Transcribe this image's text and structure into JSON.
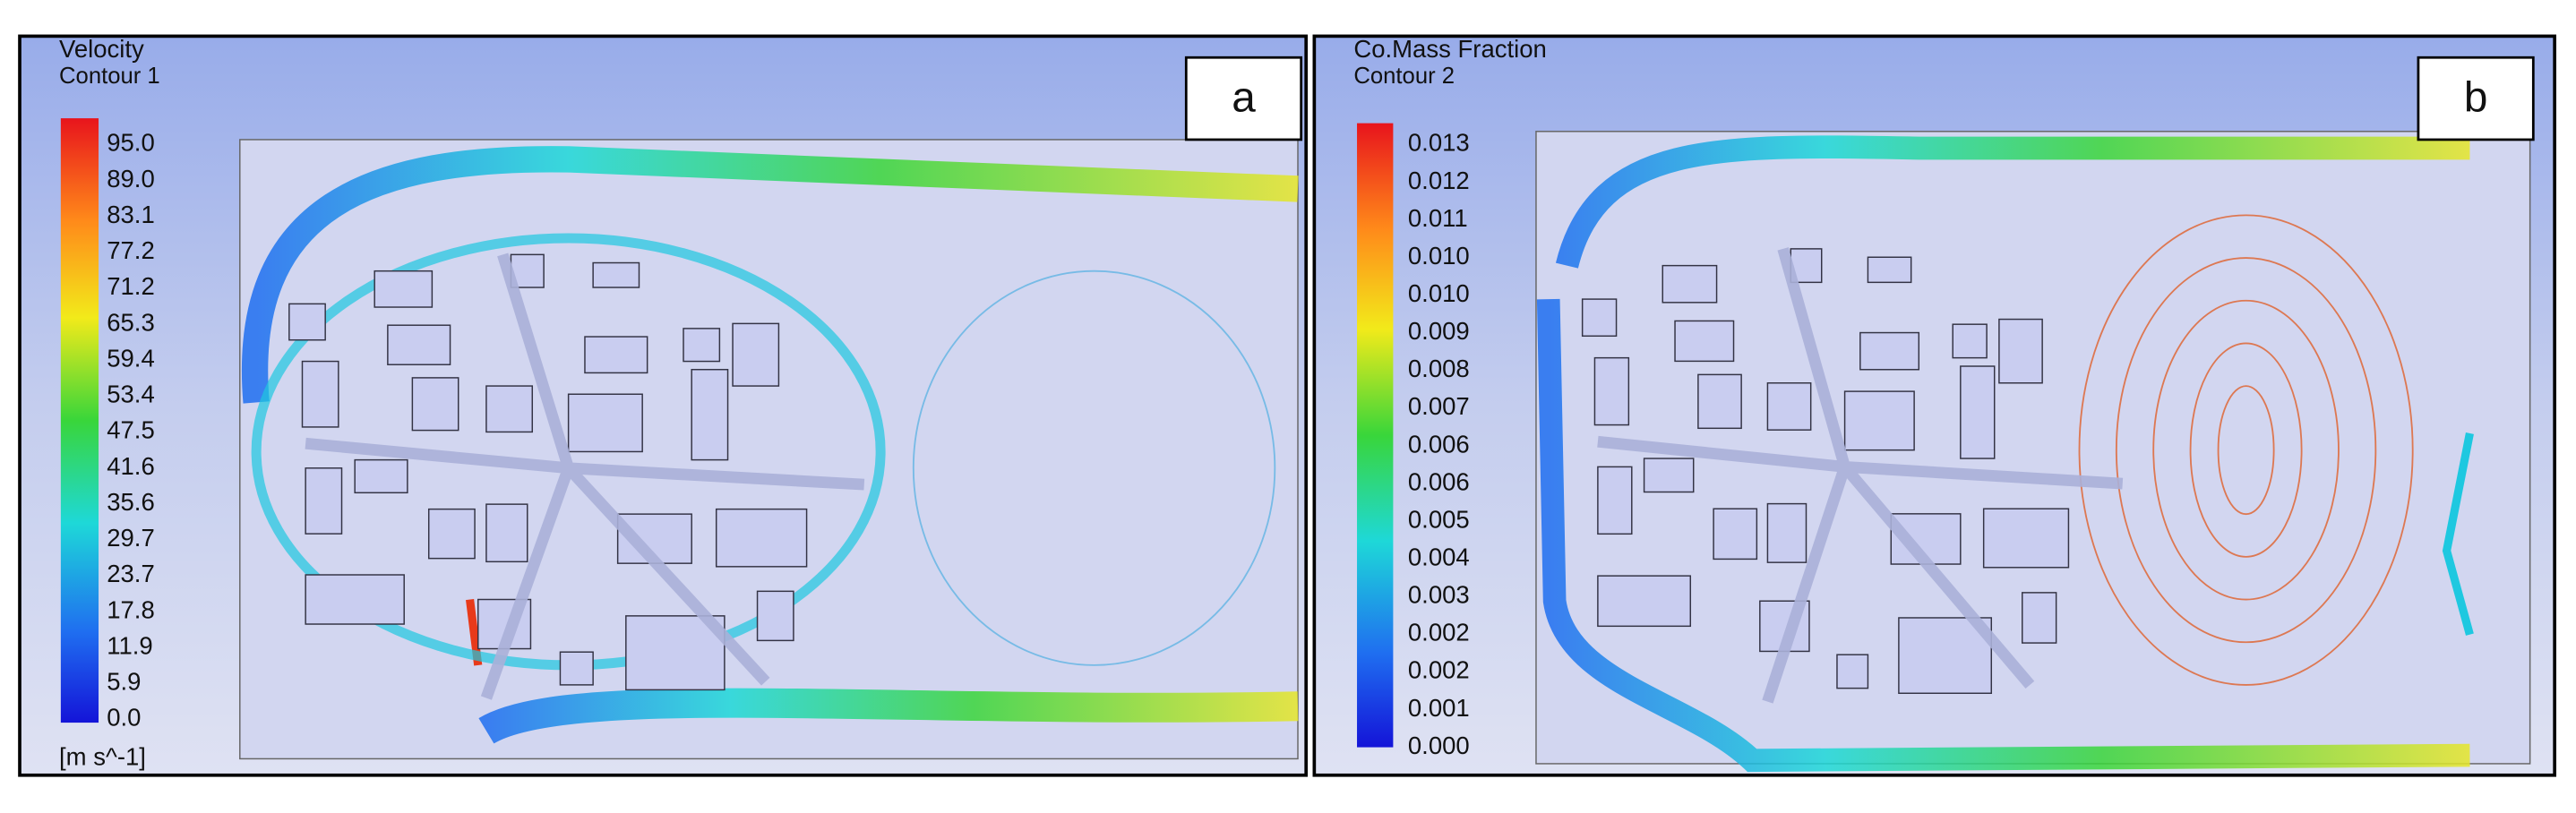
{
  "panels": [
    {
      "variable": "Velocity",
      "contour": "Contour 1",
      "letter": "a",
      "unit": "[m s^-1]",
      "scale_labels": [
        "95.0",
        "89.0",
        "83.1",
        "77.2",
        "71.2",
        "65.3",
        "59.4",
        "53.4",
        "47.5",
        "41.6",
        "35.6",
        "29.7",
        "23.7",
        "17.8",
        "11.9",
        "5.9",
        "0.0"
      ]
    },
    {
      "variable": "Co.Mass Fraction",
      "contour": "Contour 2",
      "letter": "b",
      "scale_labels": [
        "0.013",
        "0.012",
        "0.011",
        "0.010",
        "0.010",
        "0.009",
        "0.008",
        "0.007",
        "0.006",
        "0.006",
        "0.005",
        "0.004",
        "0.003",
        "0.002",
        "0.002",
        "0.001",
        "0.000"
      ]
    }
  ]
}
